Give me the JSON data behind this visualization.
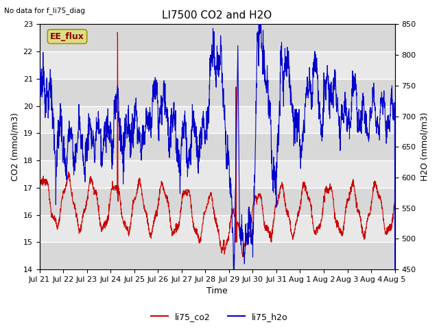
{
  "title": "LI7500 CO2 and H2O",
  "subtitle": "No data for f_li75_diag",
  "xlabel": "Time",
  "ylabel_left": "CO2 (mmol/m3)",
  "ylabel_right": "H2O (mmol/m3)",
  "legend_labels": [
    "li75_co2",
    "li75_h2o"
  ],
  "legend_colors": [
    "#cc0000",
    "#0000cc"
  ],
  "ylim_left": [
    14.0,
    23.0
  ],
  "ylim_right": [
    450,
    850
  ],
  "annotation_text": "EE_flux",
  "annotation_bg": "#dddd88",
  "annotation_edge": "#999900",
  "plot_bg": "#e8e8e8",
  "fig_bg": "#ffffff",
  "grid_color": "#ffffff",
  "tick_label_fontsize": 8,
  "axis_label_fontsize": 9,
  "title_fontsize": 11,
  "yticks_left": [
    14.0,
    15.0,
    16.0,
    17.0,
    18.0,
    19.0,
    20.0,
    21.0,
    22.0,
    23.0
  ],
  "yticks_right": [
    450,
    500,
    550,
    600,
    650,
    700,
    750,
    800,
    850
  ],
  "tick_labels": [
    "Jul 21",
    "Jul 22",
    "Jul 23",
    "Jul 24",
    "Jul 25",
    "Jul 26",
    "Jul 27",
    "Jul 28",
    "Jul 29",
    "Jul 30",
    "Jul 31",
    "Aug 1",
    "Aug 2",
    "Aug 3",
    "Aug 4",
    "Aug 5"
  ]
}
